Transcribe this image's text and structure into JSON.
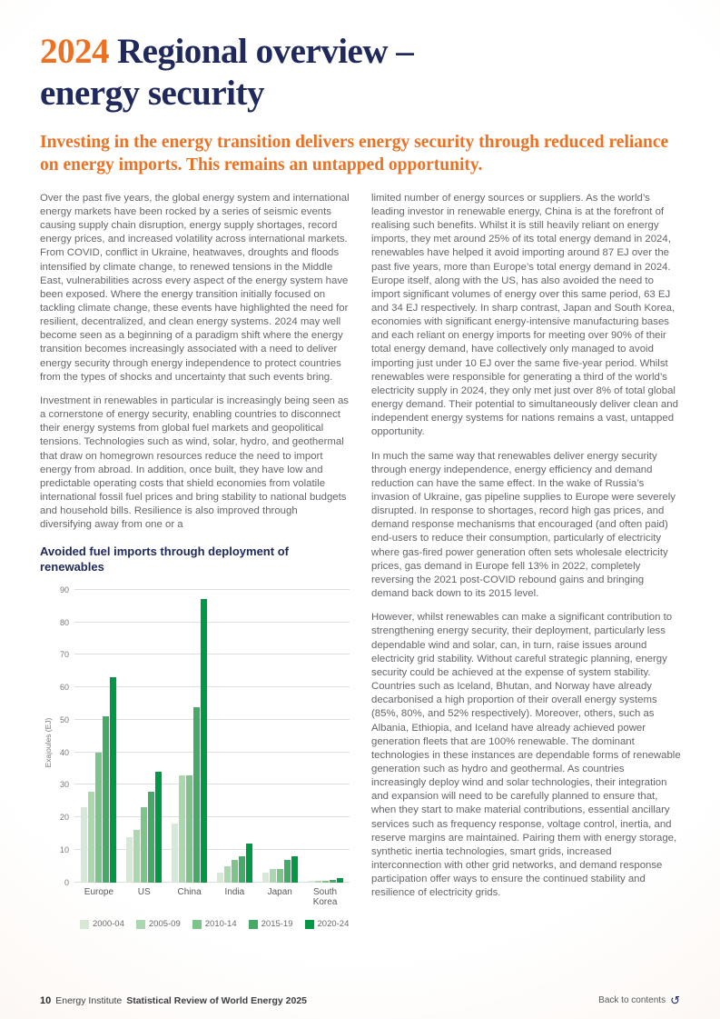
{
  "colors": {
    "accent_orange": "#ED7123",
    "heading_navy": "#20295C",
    "body_gray": "#646569"
  },
  "icons": {
    "back_arrow": "↺"
  },
  "header": {
    "title": {
      "year": "2024",
      "line1": "Regional overview –",
      "line2": "energy security"
    },
    "standfirst": "Investing in the energy transition delivers energy security through reduced reliance on energy imports. This remains an untapped opportunity."
  },
  "body": {
    "left": [
      "Over the past five years, the global energy system and international energy markets have been rocked by a series of seismic events causing supply chain disruption, energy supply shortages, record energy prices, and increased volatility across international markets. From COVID, conflict in Ukraine, heatwaves, droughts and floods intensified by climate change, to renewed tensions in the Middle East, vulnerabilities across every aspect of the energy system have been exposed. Where the energy transition initially focused on tackling climate change, these events have highlighted the need for resilient, decentralized, and clean energy systems. 2024 may well become seen as a beginning of a paradigm shift where the energy transition becomes increasingly associated with a need to deliver energy security through energy independence to protect countries from the types of shocks and uncertainty that such events bring.",
      "Investment in renewables in particular is increasingly being seen as a cornerstone of energy security, enabling countries to disconnect their energy systems from global fuel markets and geopolitical tensions. Technologies such as wind, solar, hydro, and geothermal that draw on homegrown resources reduce the need to import energy from abroad. In addition, once built, they have low and predictable operating costs that shield economies from volatile international fossil fuel prices and bring stability to national budgets and household bills. Resilience is also improved through diversifying away from one or a"
    ],
    "right": [
      "limited number of energy sources or suppliers. As the world’s leading investor in renewable energy, China is at the forefront of realising such benefits. Whilst it is still heavily reliant on energy imports, they met around 25% of its total energy demand in 2024, renewables have helped it avoid importing around 87 EJ over the past five years, more than Europe’s total energy demand in 2024. Europe itself, along with the US, has also avoided the need to import significant volumes of energy over this same period, 63 EJ and 34 EJ respectively. In sharp contrast, Japan and South Korea, economies with significant energy-intensive manufacturing bases and each reliant on energy imports for meeting over 90% of their total energy demand, have collectively only managed to avoid importing just under 10 EJ over the same five-year period. Whilst renewables were responsible for generating a third of the world’s electricity supply in 2024, they only met just over 8% of total global energy demand. Their potential to simultaneously deliver clean and independent energy systems for nations remains a vast, untapped opportunity.",
      "In much the same way that renewables deliver energy security through energy independence, energy efficiency and demand reduction can have the same effect. In the wake of Russia’s invasion of Ukraine, gas pipeline supplies to Europe were severely disrupted. In response to shortages, record high gas prices, and demand response mechanisms that encouraged (and often paid) end-users to reduce their consumption, particularly of electricity where gas-fired power generation often sets wholesale electricity prices, gas demand in Europe fell 13% in 2022, completely reversing the 2021 post-COVID rebound gains and bringing demand back down to its 2015 level.",
      "However, whilst renewables can make a significant contribution to strengthening energy security, their deployment, particularly less dependable wind and solar, can, in turn, raise issues around electricity grid stability. Without careful strategic planning, energy security could be achieved at the expense of system stability. Countries such as Iceland, Bhutan, and Norway have already decarbonised a high proportion of their overall energy systems (85%, 80%, and 52% respectively). Moreover, others, such as Albania, Ethiopia, and Iceland have already achieved power generation fleets that are 100% renewable. The dominant technologies in these instances are dependable forms of renewable generation such as hydro and geothermal. As countries increasingly deploy wind and solar technologies, their integration and expansion will need to be carefully planned to ensure that, when they start to make material contributions, essential ancillary services such as frequency response, voltage control, inertia, and reserve margins are maintained. Pairing them with energy storage, synthetic inertia technologies, smart grids, increased interconnection with other grid networks, and demand response participation offer ways to ensure the continued stability and resilience of electricity grids."
    ]
  },
  "chart_data": {
    "type": "bar",
    "title": "Avoided fuel imports through deployment of renewables",
    "xlabel": "",
    "ylabel": "Exajoules (EJ)",
    "ylim": [
      0,
      90
    ],
    "yticks": [
      0,
      10,
      20,
      30,
      40,
      50,
      60,
      70,
      80,
      90
    ],
    "grid": true,
    "legend_position": "bottom",
    "categories": [
      "Europe",
      "US",
      "China",
      "India",
      "Japan",
      "South Korea"
    ],
    "series": [
      {
        "name": "2000-04",
        "color": "#d5e9d6",
        "values": [
          23,
          14,
          18,
          3,
          3,
          0.4
        ]
      },
      {
        "name": "2005-09",
        "color": "#abd7af",
        "values": [
          28,
          16,
          33,
          5,
          4,
          0.5
        ]
      },
      {
        "name": "2010-14",
        "color": "#7cc489",
        "values": [
          40,
          23,
          33,
          7,
          4,
          0.6
        ]
      },
      {
        "name": "2015-19",
        "color": "#45aa67",
        "values": [
          51,
          28,
          54,
          8,
          7,
          0.7
        ]
      },
      {
        "name": "2020-24",
        "color": "#009845",
        "values": [
          63,
          34,
          87,
          12,
          8,
          1.2
        ]
      }
    ]
  },
  "footer": {
    "page_number": "10",
    "publisher": "Energy Institute",
    "publication": "Statistical Review of World Energy 2025",
    "back_link": "Back to contents"
  }
}
